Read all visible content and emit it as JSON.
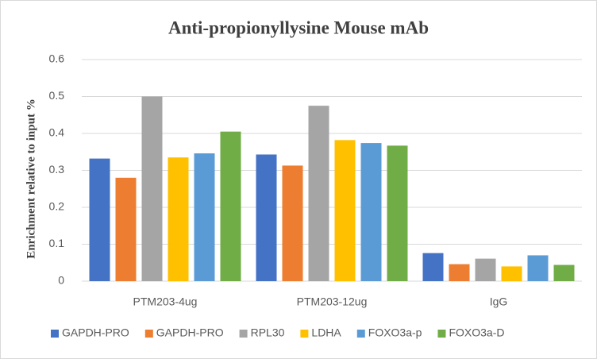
{
  "chart_data": {
    "type": "bar",
    "title": "Anti-propionyllysine  Mouse mAb",
    "y_label": "Enrichment relative to input  %",
    "categories": [
      "PTM203-4ug",
      "PTM203-12ug",
      "IgG"
    ],
    "series": [
      {
        "name": "GAPDH-PRO",
        "color": "#4472c4",
        "values": [
          0.332,
          0.343,
          0.076
        ]
      },
      {
        "name": "GAPDH-PRO",
        "color": "#ed7d31",
        "values": [
          0.28,
          0.313,
          0.046
        ]
      },
      {
        "name": "RPL30",
        "color": "#a5a5a5",
        "values": [
          0.5,
          0.475,
          0.061
        ]
      },
      {
        "name": "LDHA",
        "color": "#ffc000",
        "values": [
          0.335,
          0.382,
          0.04
        ]
      },
      {
        "name": "FOXO3a-p",
        "color": "#5b9bd5",
        "values": [
          0.346,
          0.374,
          0.07
        ]
      },
      {
        "name": "FOXO3a-D",
        "color": "#70ad47",
        "values": [
          0.405,
          0.367,
          0.044
        ]
      }
    ],
    "ylim": [
      0,
      0.6
    ],
    "yticks": [
      0,
      0.1,
      0.2,
      0.3,
      0.4,
      0.5,
      0.6
    ],
    "grid": true,
    "legend": "bottom"
  }
}
